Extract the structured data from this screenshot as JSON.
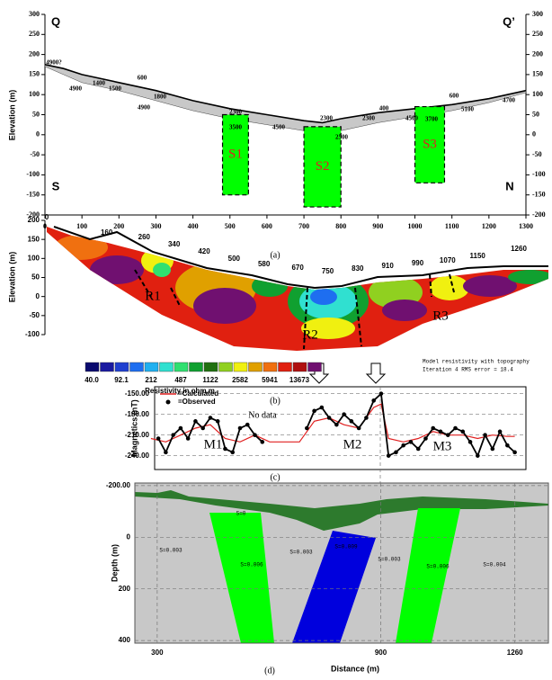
{
  "chart_data": [
    {
      "type": "section",
      "caption": "(a)",
      "ylabel": "Elevation (m)",
      "corner_labels": [
        "Q",
        "Q’",
        "S",
        "N"
      ],
      "xlim": [
        0,
        1300
      ],
      "xticks": [
        0,
        100,
        200,
        300,
        400,
        500,
        600,
        700,
        800,
        900,
        1000,
        1100,
        1200,
        1300
      ],
      "ylim": [
        -200,
        300
      ],
      "yticks": [
        -200,
        -150,
        -100,
        -50,
        0,
        50,
        100,
        150,
        200,
        250,
        300
      ],
      "y2lim": [
        -200,
        300
      ],
      "y2ticks": [
        -200,
        -150,
        -100,
        -50,
        0,
        50,
        100,
        150,
        200,
        250,
        300
      ],
      "x": [
        0,
        50,
        100,
        200,
        300,
        400,
        500,
        600,
        700,
        750,
        800,
        900,
        1000,
        1100,
        1200,
        1300
      ],
      "surface": [
        175,
        165,
        150,
        130,
        110,
        85,
        65,
        50,
        35,
        30,
        40,
        55,
        65,
        75,
        90,
        110
      ],
      "base": [
        170,
        150,
        130,
        110,
        85,
        60,
        40,
        25,
        10,
        5,
        10,
        30,
        45,
        60,
        80,
        105
      ],
      "surface_color": "#000000",
      "layer_color": "#c8c8c8",
      "blocks": [
        {
          "label": "S1",
          "x": [
            480,
            550
          ],
          "y": [
            50,
            -150
          ]
        },
        {
          "label": "S2",
          "x": [
            700,
            800
          ],
          "y": [
            20,
            -180
          ]
        },
        {
          "label": "S3",
          "x": [
            1000,
            1080
          ],
          "y": [
            70,
            -120
          ]
        }
      ],
      "block_color": "#00ff00",
      "block_label_color": "#e02020",
      "annotations": [
        "4900?",
        "1400",
        "600",
        "1500",
        "4900",
        "1800",
        "4900",
        "2300",
        "3500",
        "4500",
        "2300",
        "2500",
        "2300",
        "400",
        "4500",
        "3700",
        "600",
        "5100",
        "4700"
      ]
    },
    {
      "type": "resistivity",
      "caption": "(b)",
      "ylabel": "Elevation (m)",
      "xlim": [
        0,
        1260
      ],
      "ylim": [
        -100,
        200
      ],
      "yticks": [
        -100,
        -50,
        0,
        50,
        100,
        150,
        200
      ],
      "electrodes": [
        0,
        160,
        260,
        340,
        420,
        500,
        580,
        670,
        750,
        830,
        910,
        990,
        1070,
        1150,
        1260
      ],
      "regions": [
        "R1",
        "R2",
        "R3"
      ],
      "colorbar_colors": [
        "#0a0a6e",
        "#1a1aa0",
        "#2040d0",
        "#1e6ef0",
        "#20b0f0",
        "#30e0d0",
        "#30e070",
        "#10a030",
        "#207010",
        "#90d020",
        "#f0f010",
        "#e0a000",
        "#f07010",
        "#e02010",
        "#b01010",
        "#701070"
      ],
      "colorbar_labels": [
        {
          "value": 40,
          "label": "40.0"
        },
        92.1,
        212,
        487,
        1122,
        2582,
        5941,
        13673
      ],
      "colorbar_title": "Resistivity in ohm.m",
      "notes": [
        "Model resistivity with topography",
        "Iteration 4 RMS error = 18.4"
      ]
    },
    {
      "type": "line",
      "caption": "(c)",
      "ylabel": "Magnetics (nT)",
      "xlim": [
        290,
        1290
      ],
      "ylim": [
        -260,
        -140
      ],
      "yticks": [
        {
          "value": -150,
          "label": "-150.00"
        },
        {
          "value": -180,
          "label": "-180.00"
        },
        {
          "value": -210,
          "label": "-210.00"
        },
        {
          "value": -240,
          "label": "-240.00"
        }
      ],
      "grid": true,
      "series": [
        {
          "name": "=Calculated",
          "color": "#e02020",
          "x": [
            280,
            320,
            360,
            400,
            440,
            480,
            520,
            560,
            600,
            640,
            680,
            720,
            760,
            800,
            840,
            880,
            900,
            920,
            960,
            1000,
            1040,
            1080,
            1120,
            1160,
            1200,
            1240,
            1260
          ],
          "values": [
            -215,
            -220,
            -210,
            -200,
            -195,
            -215,
            -220,
            -210,
            -220,
            -220,
            -220,
            -190,
            -185,
            -195,
            -200,
            -170,
            -165,
            -215,
            -220,
            -215,
            -205,
            -210,
            -210,
            -215,
            -210,
            -212,
            -212
          ]
        },
        {
          "name": "=Observed",
          "color": "#000000",
          "x": [
            300,
            320,
            340,
            360,
            380,
            400,
            420,
            440,
            460,
            480,
            500,
            520,
            540,
            560,
            580,
            640,
            700,
            720,
            740,
            760,
            780,
            800,
            820,
            840,
            860,
            880,
            900,
            920,
            940,
            960,
            980,
            1000,
            1020,
            1040,
            1060,
            1080,
            1100,
            1120,
            1140,
            1160,
            1180,
            1200,
            1220,
            1240,
            1260
          ],
          "values": [
            -215,
            -235,
            -210,
            -200,
            -215,
            -190,
            -200,
            -185,
            -190,
            -230,
            -235,
            -200,
            -195,
            -210,
            -220,
            null,
            -200,
            -175,
            -170,
            -185,
            -195,
            -180,
            -190,
            -200,
            -185,
            -160,
            -150,
            -240,
            -235,
            -225,
            -220,
            -230,
            -215,
            -200,
            -205,
            -210,
            -200,
            -205,
            -220,
            -240,
            -210,
            -230,
            -205,
            -225,
            -235
          ]
        }
      ],
      "annotations": [
        "No data",
        "M1",
        "M2",
        "M3"
      ]
    },
    {
      "type": "model",
      "caption": "(d)",
      "xlabel": "Distance (m)",
      "ylabel": "Depth (m)",
      "xlim": [
        240,
        1350
      ],
      "xticks": [
        300,
        900,
        1260
      ],
      "ylim": [
        -210,
        410
      ],
      "yticks": [
        {
          "value": -200,
          "label": "-200.00"
        },
        0,
        200,
        400
      ],
      "grid": true,
      "annotations": [
        "S=0",
        "S=0.003",
        "S=0.006",
        "S=0.003",
        "S=0.009",
        "S=0.003",
        "S=0.006",
        "S=0.004"
      ]
    }
  ]
}
